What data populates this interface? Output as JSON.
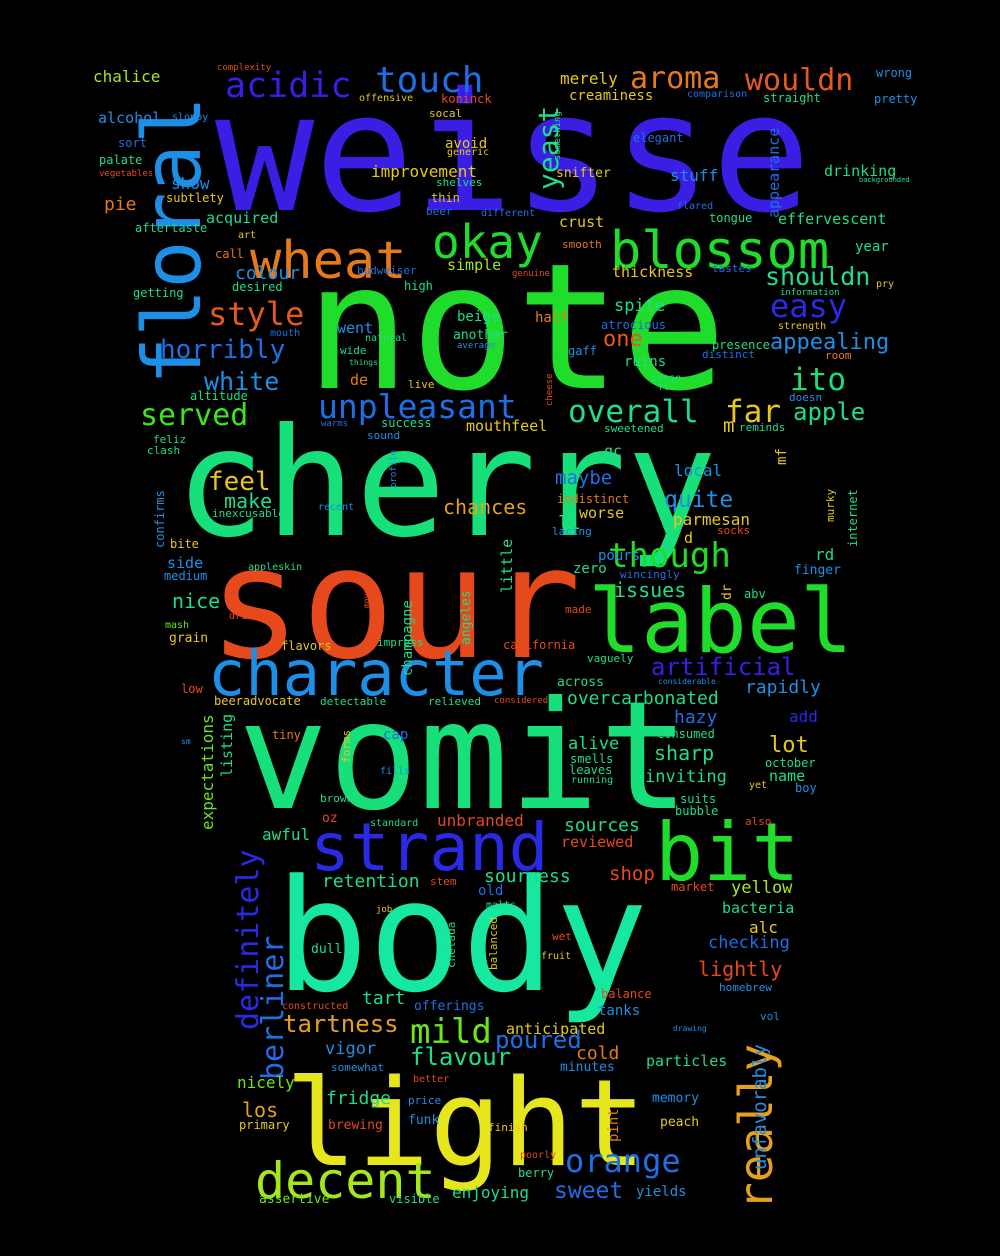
{
  "wordcloud": {
    "background": "#000000",
    "words": [
      {
        "text": "weisse",
        "color": "#3a1ee3"
      },
      {
        "text": "note",
        "color": "#1fdd2a"
      },
      {
        "text": "cherry",
        "color": "#17e07a"
      },
      {
        "text": "sour",
        "color": "#e5491c"
      },
      {
        "text": "vomit",
        "color": "#17e07a"
      },
      {
        "text": "body",
        "color": "#17e8a0"
      },
      {
        "text": "light",
        "color": "#e6e61c"
      },
      {
        "text": "floral",
        "color": "#1e8fe6"
      },
      {
        "text": "label",
        "color": "#1fdd2a"
      },
      {
        "text": "character",
        "color": "#1e8fe6"
      },
      {
        "text": "strand",
        "color": "#2a2ae6"
      },
      {
        "text": "bit",
        "color": "#1fdd2a"
      },
      {
        "text": "blossom",
        "color": "#1fdd2a"
      },
      {
        "text": "wheat",
        "color": "#e57a1c"
      },
      {
        "text": "okay",
        "color": "#1fdd2a"
      },
      {
        "text": "decent",
        "color": "#a6e61c"
      },
      {
        "text": "really",
        "color": "#e6a01c"
      },
      {
        "text": "touch",
        "color": "#1e6fe6"
      },
      {
        "text": "acidic",
        "color": "#3a1ee3"
      },
      {
        "text": "aroma",
        "color": "#e57a1c"
      },
      {
        "text": "wouldn",
        "color": "#e5591c"
      },
      {
        "text": "style",
        "color": "#e5591c"
      },
      {
        "text": "easy",
        "color": "#2a2ae6"
      },
      {
        "text": "unpleasant",
        "color": "#1e6fe6"
      },
      {
        "text": "overall",
        "color": "#1fdd8a"
      },
      {
        "text": "far",
        "color": "#e6c81c"
      },
      {
        "text": "ito",
        "color": "#17e07a"
      },
      {
        "text": "served",
        "color": "#3ae61c"
      },
      {
        "text": "horribly",
        "color": "#1e6fe6"
      },
      {
        "text": "white",
        "color": "#1e8fe6"
      },
      {
        "text": "mild",
        "color": "#6ae61c"
      },
      {
        "text": "orange",
        "color": "#1e6fe6"
      },
      {
        "text": "though",
        "color": "#1fdd2a"
      },
      {
        "text": "yeast",
        "color": "#1fdd8a"
      },
      {
        "text": "shouldn",
        "color": "#1fdd8a"
      },
      {
        "text": "definitely",
        "color": "#2a2ae6"
      },
      {
        "text": "berliner",
        "color": "#1e6fe6"
      },
      {
        "text": "unfavorably",
        "color": "#1e8fe6"
      },
      {
        "text": "apple",
        "color": "#1fdd8a"
      },
      {
        "text": "appealing",
        "color": "#1e8fe6"
      },
      {
        "text": "feel",
        "color": "#e6c81c"
      },
      {
        "text": "quite",
        "color": "#1e8fe6"
      },
      {
        "text": "artificial",
        "color": "#3a1ee3"
      },
      {
        "text": "poured",
        "color": "#1e6fe6"
      },
      {
        "text": "tartness",
        "color": "#e6a01c"
      },
      {
        "text": "flavour",
        "color": "#1fdd8a"
      },
      {
        "text": "sweet",
        "color": "#1e6fe6"
      },
      {
        "text": "lot",
        "color": "#e6c81c"
      },
      {
        "text": "one",
        "color": "#e5591c"
      },
      {
        "text": "lightly",
        "color": "#e5491c"
      },
      {
        "text": "issues",
        "color": "#1fdd8a"
      },
      {
        "text": "nice",
        "color": "#1fdd8a"
      },
      {
        "text": "make",
        "color": "#1fdd8a"
      },
      {
        "text": "chances",
        "color": "#e6a01c"
      },
      {
        "text": "shop",
        "color": "#e5491c"
      },
      {
        "text": "sources",
        "color": "#1fdd8a"
      },
      {
        "text": "sourness",
        "color": "#1fdd8a"
      },
      {
        "text": "retention",
        "color": "#1fdd8a"
      },
      {
        "text": "fridge",
        "color": "#1fdd8a"
      },
      {
        "text": "nicely",
        "color": "#6ae61c"
      },
      {
        "text": "los",
        "color": "#e6a01c"
      },
      {
        "text": "cold",
        "color": "#e57a1c"
      },
      {
        "text": "vigor",
        "color": "#1e8fe6"
      },
      {
        "text": "tart",
        "color": "#1fdd8a"
      },
      {
        "text": "awful",
        "color": "#1fdd8a"
      },
      {
        "text": "sharp",
        "color": "#1fdd8a"
      },
      {
        "text": "alive",
        "color": "#1fdd8a"
      },
      {
        "text": "inviting",
        "color": "#1fdd8a"
      },
      {
        "text": "hazy",
        "color": "#1e6fe6"
      },
      {
        "text": "rapidly",
        "color": "#1e8fe6"
      },
      {
        "text": "add",
        "color": "#2a2ae6"
      },
      {
        "text": "name",
        "color": "#1fdd8a"
      },
      {
        "text": "overcarbonated",
        "color": "#1fdd8a"
      },
      {
        "text": "yellow",
        "color": "#a6e61c"
      },
      {
        "text": "bacteria",
        "color": "#1fdd8a"
      },
      {
        "text": "alc",
        "color": "#e6c81c"
      },
      {
        "text": "checking",
        "color": "#1e6fe6"
      },
      {
        "text": "tanks",
        "color": "#1e8fe6"
      },
      {
        "text": "anticipated",
        "color": "#e6c81c"
      },
      {
        "text": "particles",
        "color": "#1fdd8a"
      },
      {
        "text": "minutes",
        "color": "#1e8fe6"
      },
      {
        "text": "memory",
        "color": "#1e8fe6"
      },
      {
        "text": "peach",
        "color": "#e6c81c"
      },
      {
        "text": "pint",
        "color": "#e57a1c"
      },
      {
        "text": "enjoying",
        "color": "#1fdd8a"
      },
      {
        "text": "yields",
        "color": "#1e8fe6"
      },
      {
        "text": "unbranded",
        "color": "#e5491c"
      },
      {
        "text": "reviewed",
        "color": "#e5491c"
      },
      {
        "text": "mouthfeel",
        "color": "#e6c81c"
      },
      {
        "text": "parmesan",
        "color": "#e6c81c"
      },
      {
        "text": "local",
        "color": "#1e8fe6"
      },
      {
        "text": "maybe",
        "color": "#1e6fe6"
      },
      {
        "text": "worse",
        "color": "#e6c81c"
      },
      {
        "text": "zero",
        "color": "#1fdd8a"
      },
      {
        "text": "improvement",
        "color": "#e6c81c"
      },
      {
        "text": "colour",
        "color": "#1e8fe6"
      },
      {
        "text": "crust",
        "color": "#e6c81c"
      },
      {
        "text": "simple",
        "color": "#a6e61c"
      },
      {
        "text": "thickness",
        "color": "#e6c81c"
      },
      {
        "text": "spite",
        "color": "#1fdd8a"
      },
      {
        "text": "half",
        "color": "#e57a1c"
      },
      {
        "text": "chalice",
        "color": "#a6e61c"
      },
      {
        "text": "alcohol",
        "color": "#1e8fe6"
      },
      {
        "text": "pie",
        "color": "#e57a1c"
      },
      {
        "text": "show",
        "color": "#1e8fe6"
      },
      {
        "text": "acquired",
        "color": "#1fdd8a"
      },
      {
        "text": "drinking",
        "color": "#1fdd8a"
      },
      {
        "text": "effervescent",
        "color": "#1fdd8a"
      },
      {
        "text": "appearance",
        "color": "#1e6fe6"
      },
      {
        "text": "merely",
        "color": "#e6c81c"
      },
      {
        "text": "stuff",
        "color": "#1e8fe6"
      },
      {
        "text": "avoid",
        "color": "#e6c81c"
      },
      {
        "text": "side",
        "color": "#1e8fe6"
      },
      {
        "text": "champagne",
        "color": "#1fdd8a"
      },
      {
        "text": "angeles",
        "color": "#1fdd8a"
      },
      {
        "text": "little",
        "color": "#1fdd8a"
      },
      {
        "text": "listing",
        "color": "#1fdd8a"
      },
      {
        "text": "expectations",
        "color": "#6ae61c"
      },
      {
        "text": "went",
        "color": "#1e8fe6"
      },
      {
        "text": "de",
        "color": "#e57a1c"
      },
      {
        "text": "qc",
        "color": "#1fdd8a"
      },
      {
        "text": "pours",
        "color": "#1e8fe6"
      },
      {
        "text": "rd",
        "color": "#1fdd8a"
      },
      {
        "text": "finger",
        "color": "#1e8fe6"
      },
      {
        "text": "ll",
        "color": "#1fdd8a"
      },
      {
        "text": "d",
        "color": "#e6c81c"
      },
      {
        "text": "m",
        "color": "#e6c81c"
      },
      {
        "text": "mf",
        "color": "#e6c81c"
      },
      {
        "text": "year",
        "color": "#1fdd8a"
      },
      {
        "text": "beige",
        "color": "#1fdd8a"
      },
      {
        "text": "another",
        "color": "#1fdd8a"
      },
      {
        "text": "ruins",
        "color": "#1fdd8a"
      },
      {
        "text": "gaff",
        "color": "#1e8fe6"
      },
      {
        "text": "presence",
        "color": "#1fdd8a"
      },
      {
        "text": "snifter",
        "color": "#e6c81c"
      },
      {
        "text": "creaminess",
        "color": "#e6c81c"
      },
      {
        "text": "straight",
        "color": "#1fdd8a"
      },
      {
        "text": "pretty",
        "color": "#1e8fe6"
      },
      {
        "text": "wrong",
        "color": "#1e8fe6"
      },
      {
        "text": "koninck",
        "color": "#e5491c"
      },
      {
        "text": "socal",
        "color": "#e6c81c"
      },
      {
        "text": "tongue",
        "color": "#1fdd8a"
      },
      {
        "text": "tastes",
        "color": "#1e6fe6"
      },
      {
        "text": "offerings",
        "color": "#1e6fe6"
      },
      {
        "text": "market",
        "color": "#e5491c"
      },
      {
        "text": "old",
        "color": "#1e6fe6"
      },
      {
        "text": "brewing",
        "color": "#e5491c"
      },
      {
        "text": "primary",
        "color": "#e6c81c"
      },
      {
        "text": "assertive",
        "color": "#6ae61c"
      },
      {
        "text": "visible",
        "color": "#1fdd8a"
      },
      {
        "text": "berry",
        "color": "#1fdd8a"
      },
      {
        "text": "poorly",
        "color": "#e5491c"
      },
      {
        "text": "finish",
        "color": "#e6c81c"
      },
      {
        "text": "funk",
        "color": "#1e8fe6"
      },
      {
        "text": "price",
        "color": "#1e8fe6"
      },
      {
        "text": "better",
        "color": "#e5491c"
      },
      {
        "text": "somewhat",
        "color": "#1e8fe6"
      },
      {
        "text": "balance",
        "color": "#e5491c"
      },
      {
        "text": "homebrew",
        "color": "#1e8fe6"
      },
      {
        "text": "vol",
        "color": "#1e8fe6"
      },
      {
        "text": "bubble",
        "color": "#1fdd8a"
      },
      {
        "text": "suits",
        "color": "#1fdd8a"
      },
      {
        "text": "also",
        "color": "#e5491c"
      },
      {
        "text": "october",
        "color": "#1fdd8a"
      },
      {
        "text": "boy",
        "color": "#1e8fe6"
      },
      {
        "text": "yet",
        "color": "#e6c81c"
      },
      {
        "text": "consumed",
        "color": "#1fdd8a"
      },
      {
        "text": "smells",
        "color": "#1fdd8a"
      },
      {
        "text": "leaves",
        "color": "#1fdd8a"
      },
      {
        "text": "running",
        "color": "#1fdd8a"
      },
      {
        "text": "cap",
        "color": "#1e6fe6"
      },
      {
        "text": "fills",
        "color": "#1e8fe6"
      },
      {
        "text": "forms",
        "color": "#e6c81c"
      },
      {
        "text": "tiny",
        "color": "#e57a1c"
      },
      {
        "text": "brown",
        "color": "#1fdd8a"
      },
      {
        "text": "oz",
        "color": "#e5491c"
      },
      {
        "text": "standard",
        "color": "#1fdd8a"
      },
      {
        "text": "stem",
        "color": "#e5491c"
      },
      {
        "text": "malts",
        "color": "#1fdd8a"
      },
      {
        "text": "job",
        "color": "#e6c81c"
      },
      {
        "text": "dull",
        "color": "#1fdd8a"
      },
      {
        "text": "chelada",
        "color": "#1fdd8a"
      },
      {
        "text": "balanced",
        "color": "#e6c81c"
      },
      {
        "text": "wet",
        "color": "#e5491c"
      },
      {
        "text": "fruit",
        "color": "#e6c81c"
      },
      {
        "text": "constructed",
        "color": "#e5491c"
      },
      {
        "text": "drawing",
        "color": "#1e8fe6"
      },
      {
        "text": "beeradvocate",
        "color": "#e6c81c"
      },
      {
        "text": "detectable",
        "color": "#1fdd8a"
      },
      {
        "text": "relieved",
        "color": "#1fdd8a"
      },
      {
        "text": "considered",
        "color": "#e5491c"
      },
      {
        "text": "across",
        "color": "#1fdd8a"
      },
      {
        "text": "considerable",
        "color": "#1e8fe6"
      },
      {
        "text": "vaguely",
        "color": "#1fdd8a"
      },
      {
        "text": "california",
        "color": "#e5491c"
      },
      {
        "text": "impress",
        "color": "#1fdd8a"
      },
      {
        "text": "flavors",
        "color": "#e6c81c"
      },
      {
        "text": "low",
        "color": "#e5491c"
      },
      {
        "text": "sm",
        "color": "#1e8fe6"
      },
      {
        "text": "mash",
        "color": "#6ae61c"
      },
      {
        "text": "grain",
        "color": "#e6c81c"
      },
      {
        "text": "drink",
        "color": "#e5491c"
      },
      {
        "text": "moves",
        "color": "#e5491c"
      },
      {
        "text": "made",
        "color": "#e5491c"
      },
      {
        "text": "wincingly",
        "color": "#1e6fe6"
      },
      {
        "text": "dr",
        "color": "#e6c81c"
      },
      {
        "text": "abv",
        "color": "#1fdd8a"
      },
      {
        "text": "medium",
        "color": "#1e8fe6"
      },
      {
        "text": "appleskin",
        "color": "#1fdd8a"
      },
      {
        "text": "bite",
        "color": "#e6c81c"
      },
      {
        "text": "confirms",
        "color": "#1e8fe6"
      },
      {
        "text": "clash",
        "color": "#1fdd8a"
      },
      {
        "text": "feliz",
        "color": "#1fdd8a"
      },
      {
        "text": "inexcusable",
        "color": "#1fdd8a"
      },
      {
        "text": "recent",
        "color": "#1e8fe6"
      },
      {
        "text": "sound",
        "color": "#1e8fe6"
      },
      {
        "text": "profile",
        "color": "#1e8fe6"
      },
      {
        "text": "success",
        "color": "#1fdd8a"
      },
      {
        "text": "warms",
        "color": "#1e6fe6"
      },
      {
        "text": "altitude",
        "color": "#1fdd8a"
      },
      {
        "text": "live",
        "color": "#e6c81c"
      },
      {
        "text": "cheese",
        "color": "#e5491c"
      },
      {
        "text": "lacing",
        "color": "#1e8fe6"
      },
      {
        "text": "socks",
        "color": "#e5491c"
      },
      {
        "text": "indistinct",
        "color": "#e57a1c"
      },
      {
        "text": "sweetened",
        "color": "#1fdd8a"
      },
      {
        "text": "reminds",
        "color": "#1fdd8a"
      },
      {
        "text": "murky",
        "color": "#e6c81c"
      },
      {
        "text": "internet",
        "color": "#1fdd8a"
      },
      {
        "text": "doesn",
        "color": "#1e8fe6"
      },
      {
        "text": "room",
        "color": "#e57a1c"
      },
      {
        "text": "sense",
        "color": "#1fdd8a"
      },
      {
        "text": "fl",
        "color": "#1fdd8a"
      },
      {
        "text": "distinct",
        "color": "#1e6fe6"
      },
      {
        "text": "atrocious",
        "color": "#1e6fe6"
      },
      {
        "text": "strength",
        "color": "#e6c81c"
      },
      {
        "text": "information",
        "color": "#1fdd8a"
      },
      {
        "text": "pry",
        "color": "#e6c81c"
      },
      {
        "text": "wide",
        "color": "#1fdd8a"
      },
      {
        "text": "natural",
        "color": "#1fdd8a"
      },
      {
        "text": "average",
        "color": "#1e8fe6"
      },
      {
        "text": "things",
        "color": "#1fdd8a"
      },
      {
        "text": "mouth",
        "color": "#1e6fe6"
      },
      {
        "text": "high",
        "color": "#1fdd8a"
      },
      {
        "text": "budweiser",
        "color": "#1e6fe6"
      },
      {
        "text": "genuine",
        "color": "#e5491c"
      },
      {
        "text": "desired",
        "color": "#1fdd8a"
      },
      {
        "text": "getting",
        "color": "#1fdd8a"
      },
      {
        "text": "call",
        "color": "#e57a1c"
      },
      {
        "text": "art",
        "color": "#e6c81c"
      },
      {
        "text": "smooth",
        "color": "#e57a1c"
      },
      {
        "text": "flared",
        "color": "#1e6fe6"
      },
      {
        "text": "different",
        "color": "#1e6fe6"
      },
      {
        "text": "beer",
        "color": "#1e6fe6"
      },
      {
        "text": "thin",
        "color": "#e6c81c"
      },
      {
        "text": "shelves",
        "color": "#1fdd8a"
      },
      {
        "text": "generic",
        "color": "#e6c81c"
      },
      {
        "text": "elegant",
        "color": "#1e6fe6"
      },
      {
        "text": "something",
        "color": "#1fdd8a"
      },
      {
        "text": "comparison",
        "color": "#1e6fe6"
      },
      {
        "text": "offensive",
        "color": "#e6c81c"
      },
      {
        "text": "complexity",
        "color": "#e5491c"
      },
      {
        "text": "sloppy",
        "color": "#1e8fe6"
      },
      {
        "text": "sort",
        "color": "#1e6fe6"
      },
      {
        "text": "palate",
        "color": "#1fdd8a"
      },
      {
        "text": "vegetables",
        "color": "#e5491c"
      },
      {
        "text": "subtlety",
        "color": "#e6c81c"
      },
      {
        "text": "aftertaste",
        "color": "#1fdd8a"
      },
      {
        "text": "backgrounded",
        "color": "#1fdd8a"
      }
    ]
  }
}
